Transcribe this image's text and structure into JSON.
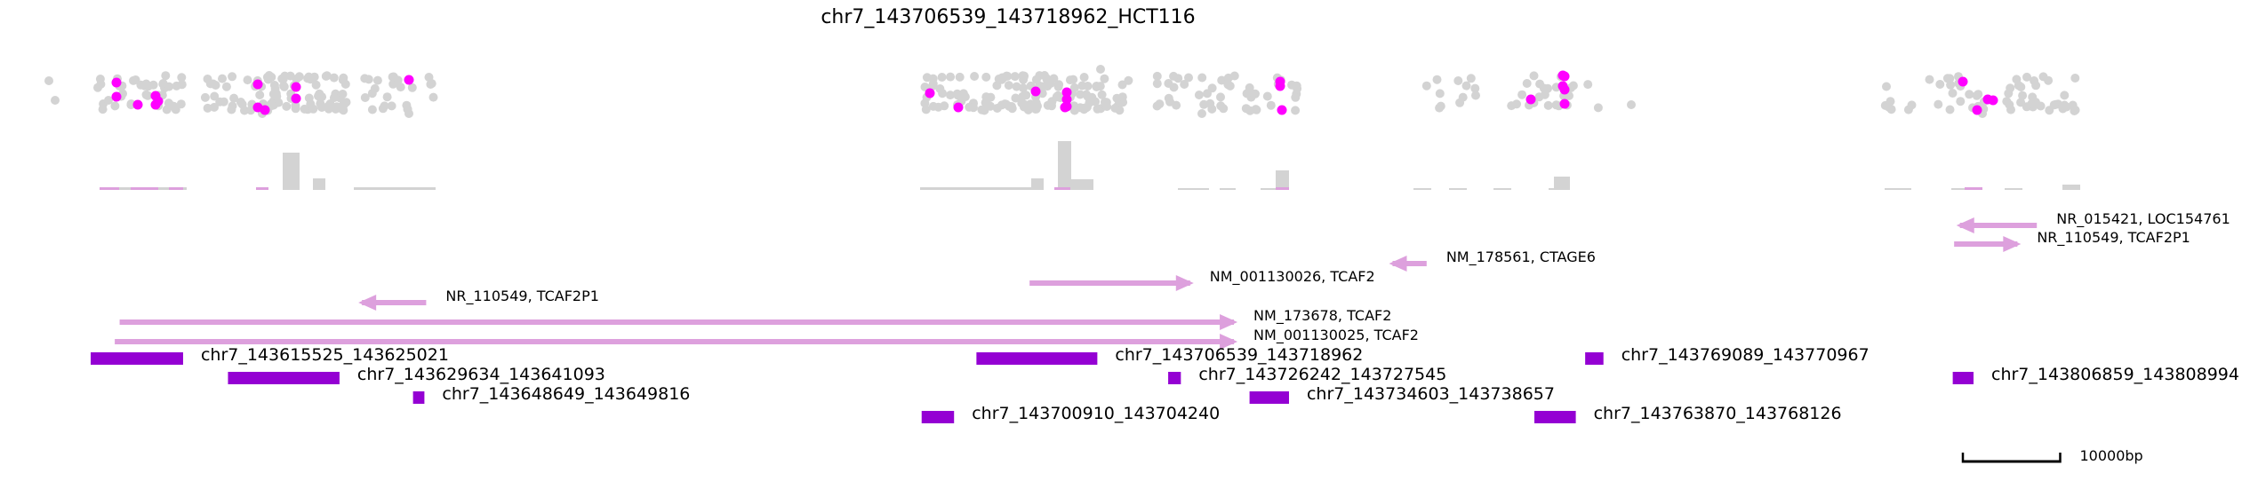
{
  "title": "chr7_143706539_143718962_HCT116",
  "colors": {
    "background_dots": "#d3d3d3",
    "highlight_dots": "#ff00ff",
    "histogram": "#d3d3d3",
    "histogram_highlight": "#dda0dd",
    "gene": "#dda0dd",
    "region": "#9400d3",
    "scale_bar": "#000000"
  },
  "genes": [
    {
      "label": "NR_015421, LOC154761",
      "start": 143807600,
      "end": 143815500,
      "strand": "-"
    },
    {
      "label": "NR_110549, TCAF2P1",
      "start": 143807000,
      "end": 143813500,
      "strand": "+"
    },
    {
      "label": "NM_178561, CTAGE6",
      "start": 143749300,
      "end": 143752800,
      "strand": "-"
    },
    {
      "label": "NM_001130026, TCAF2",
      "start": 143712000,
      "end": 143728500,
      "strand": "+"
    },
    {
      "label": "NR_110549, TCAF2P1",
      "start": 143643400,
      "end": 143650000,
      "strand": "-"
    },
    {
      "label": "NM_173678, TCAF2",
      "start": 143618500,
      "end": 143733000,
      "strand": "+"
    },
    {
      "label": "NM_001130025, TCAF2",
      "start": 143618000,
      "end": 143733000,
      "strand": "+"
    }
  ],
  "regions": [
    {
      "label": "chr7_143615525_143625021",
      "start": 143615525,
      "end": 143625021
    },
    {
      "label": "chr7_143629634_143641093",
      "start": 143629634,
      "end": 143641093
    },
    {
      "label": "chr7_143648649_143649816",
      "start": 143648649,
      "end": 143649816
    },
    {
      "label": "chr7_143700910_143704240",
      "start": 143700910,
      "end": 143704240
    },
    {
      "label": "chr7_143706539_143718962",
      "start": 143706539,
      "end": 143718962
    },
    {
      "label": "chr7_143726242_143727545",
      "start": 143726242,
      "end": 143727545
    },
    {
      "label": "chr7_143734603_143738657",
      "start": 143734603,
      "end": 143738657
    },
    {
      "label": "chr7_143763870_143768126",
      "start": 143763870,
      "end": 143768126
    },
    {
      "label": "chr7_143769089_143770967",
      "start": 143769089,
      "end": 143770967
    },
    {
      "label": "chr7_143806859_143808994",
      "start": 143806859,
      "end": 143808994
    }
  ],
  "scale_bar": {
    "label": "10000bp",
    "length_bp": 10000
  }
}
